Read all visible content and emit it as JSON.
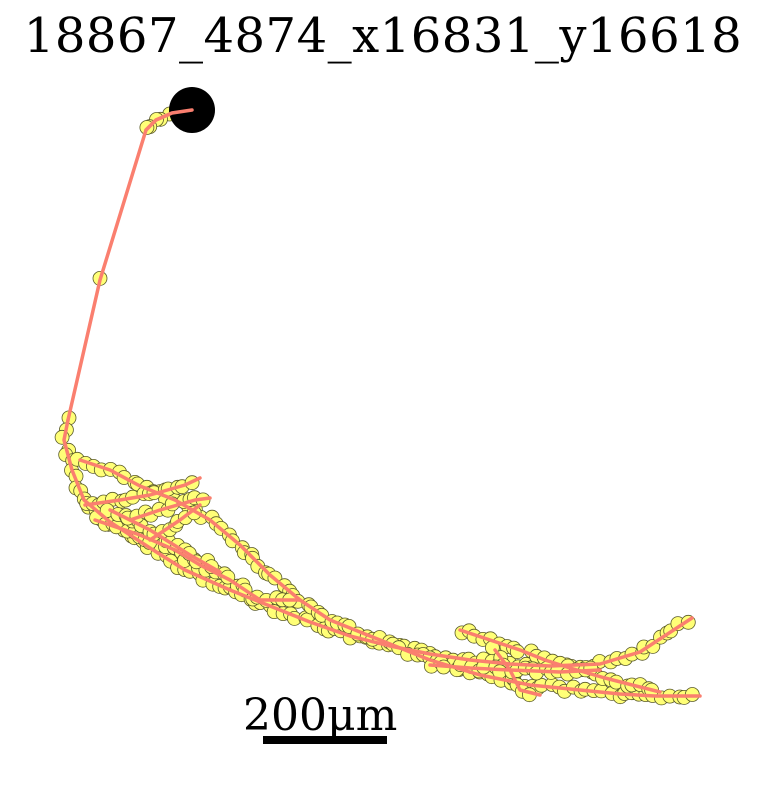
{
  "title": "18867_4874_x16831_y16618",
  "scale_bar": {
    "label": "200μm",
    "value_um": 200
  },
  "colors": {
    "soma": "#000000",
    "path": "#fa7f6f",
    "node_fill": "#ffff77",
    "node_edge": "#5a5a2a"
  }
}
